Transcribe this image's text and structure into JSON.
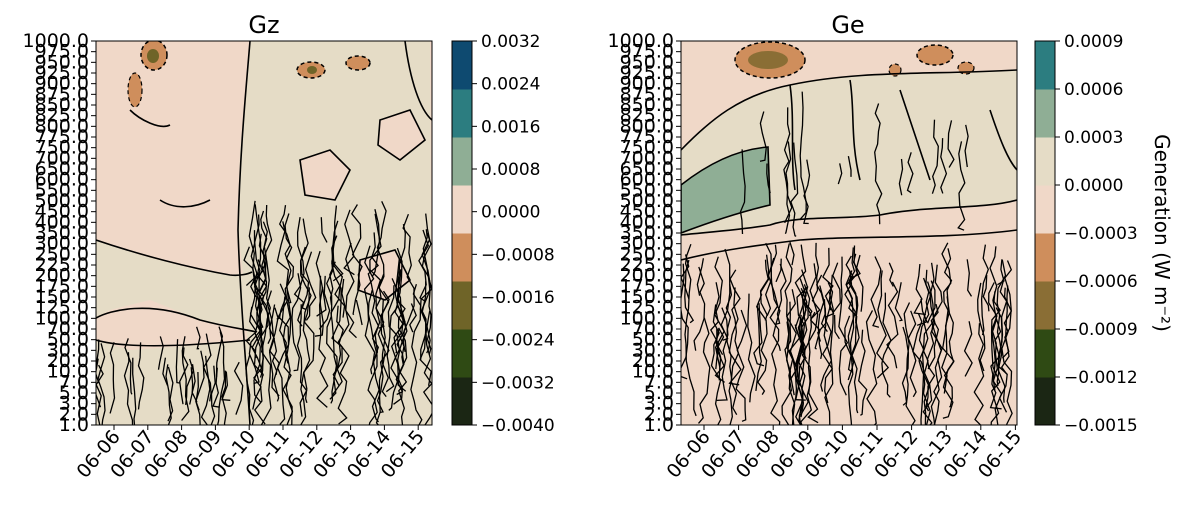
{
  "colors": {
    "background": "#ffffff",
    "contour_line": "#000000",
    "gz_levels": [
      "#1b2614",
      "#2f4a14",
      "#6f6428",
      "#cf8e5c",
      "#f0d8c8",
      "#8fae95",
      "#2c7d80",
      "#0e4a70"
    ],
    "ge_levels": [
      "#1b2614",
      "#2f4a14",
      "#8a6e35",
      "#cf8e5c",
      "#f0d8c8",
      "#e5dcc6",
      "#8fae95",
      "#2c7d80"
    ]
  },
  "chart_data": [
    {
      "type": "heatmap",
      "title": "Gz",
      "x_ticks": [
        "06-06",
        "06-07",
        "06-08",
        "06-09",
        "06-10",
        "06-11",
        "06-12",
        "06-13",
        "06-14",
        "06-15"
      ],
      "y_ticks": [
        "1.0",
        "2.0",
        "3.0",
        "5.0",
        "7.0",
        "10.0",
        "20.0",
        "30.0",
        "50.0",
        "70.0",
        "100.0",
        "125.0",
        "150.0",
        "175.0",
        "200.0",
        "225.0",
        "250.0",
        "300.0",
        "350.0",
        "400.0",
        "450.0",
        "500.0",
        "550.0",
        "600.0",
        "650.0",
        "700.0",
        "750.0",
        "775.0",
        "800.0",
        "825.0",
        "850.0",
        "875.0",
        "900.0",
        "925.0",
        "950.0",
        "975.0",
        "1000.0"
      ],
      "ylim": [
        "1.0",
        "1000.0"
      ],
      "colorbar": {
        "label": "",
        "ticks": [
          "0.0032",
          "0.0024",
          "0.0016",
          "0.0008",
          "0.0000",
          "−0.0008",
          "−0.0016",
          "−0.0024",
          "−0.0032",
          "−0.0040"
        ],
        "range": [
          -0.004,
          0.0032
        ]
      }
    },
    {
      "type": "heatmap",
      "title": "Ge",
      "x_ticks": [
        "06-06",
        "06-07",
        "06-08",
        "06-09",
        "06-10",
        "06-11",
        "06-12",
        "06-13",
        "06-14",
        "06-15"
      ],
      "y_ticks": [
        "1.0",
        "2.0",
        "3.0",
        "5.0",
        "7.0",
        "10.0",
        "20.0",
        "30.0",
        "50.0",
        "70.0",
        "100.0",
        "125.0",
        "150.0",
        "175.0",
        "200.0",
        "225.0",
        "250.0",
        "300.0",
        "350.0",
        "400.0",
        "450.0",
        "500.0",
        "550.0",
        "600.0",
        "650.0",
        "700.0",
        "750.0",
        "775.0",
        "800.0",
        "825.0",
        "850.0",
        "875.0",
        "900.0",
        "925.0",
        "950.0",
        "975.0",
        "1000.0"
      ],
      "ylim": [
        "1.0",
        "1000.0"
      ],
      "colorbar": {
        "label": "Generation  (W m⁻²)",
        "ticks": [
          "0.0009",
          "0.0006",
          "0.0003",
          "0.0000",
          "−0.0003",
          "−0.0006",
          "−0.0009",
          "−0.0012",
          "−0.0015"
        ],
        "range": [
          -0.0015,
          0.0009
        ]
      }
    }
  ]
}
